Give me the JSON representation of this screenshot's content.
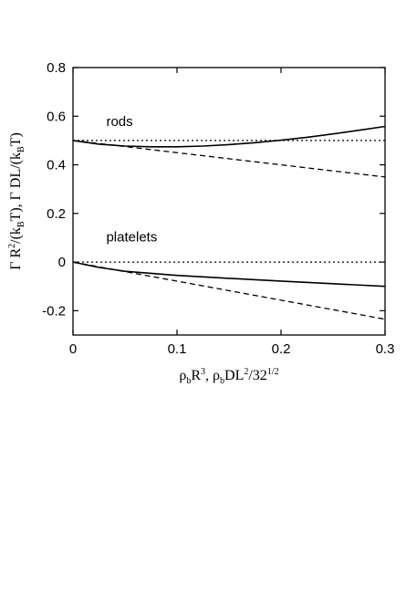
{
  "chart_data": {
    "type": "line",
    "title": "",
    "xlabel": {
      "parts": [
        {
          "t": "ρ",
          "s": "n"
        },
        {
          "t": "b",
          "s": "sub"
        },
        {
          "t": "R",
          "s": "n"
        },
        {
          "t": "3",
          "s": "sup"
        },
        {
          "t": ",  ρ",
          "s": "n"
        },
        {
          "t": "b",
          "s": "sub"
        },
        {
          "t": "DL",
          "s": "n"
        },
        {
          "t": "2",
          "s": "sup"
        },
        {
          "t": "/32",
          "s": "n"
        },
        {
          "t": "1/2",
          "s": "sup"
        }
      ]
    },
    "ylabel": {
      "parts": [
        {
          "t": "Γ R",
          "s": "n"
        },
        {
          "t": "2",
          "s": "sup"
        },
        {
          "t": "/(k",
          "s": "n"
        },
        {
          "t": "B",
          "s": "sub"
        },
        {
          "t": "T),  Γ DL/(k",
          "s": "n"
        },
        {
          "t": "B",
          "s": "sub"
        },
        {
          "t": "T)",
          "s": "n"
        }
      ]
    },
    "xlim": [
      0,
      0.3
    ],
    "ylim": [
      -0.3,
      0.8
    ],
    "xticks": [
      0,
      0.1,
      0.2,
      0.3
    ],
    "xtick_labels": [
      "0",
      "0.1",
      "0.2",
      "0.3"
    ],
    "yticks": [
      -0.2,
      0,
      0.2,
      0.4,
      0.6,
      0.8
    ],
    "ytick_labels": [
      "-0.2",
      "0",
      "0.2",
      "0.4",
      "0.6",
      "0.8"
    ],
    "grid": false,
    "annotations": [
      {
        "text": "rods",
        "x": 0.032,
        "y": 0.56
      },
      {
        "text": "platelets",
        "x": 0.032,
        "y": 0.085
      }
    ],
    "series": [
      {
        "style": "dotted",
        "x": [
          0,
          0.3
        ],
        "y": [
          0.5,
          0.5
        ]
      },
      {
        "style": "solid",
        "x": [
          0,
          0.025,
          0.05,
          0.075,
          0.1,
          0.125,
          0.15,
          0.175,
          0.2,
          0.225,
          0.25,
          0.275,
          0.3
        ],
        "y": [
          0.5,
          0.485,
          0.477,
          0.474,
          0.474,
          0.477,
          0.483,
          0.491,
          0.501,
          0.513,
          0.527,
          0.542,
          0.558
        ]
      },
      {
        "style": "dashed",
        "x": [
          0,
          0.3
        ],
        "y": [
          0.5,
          0.35
        ]
      },
      {
        "style": "dotted",
        "x": [
          0,
          0.3
        ],
        "y": [
          0,
          0
        ]
      },
      {
        "style": "solid",
        "x": [
          0,
          0.025,
          0.05,
          0.1,
          0.15,
          0.2,
          0.25,
          0.3
        ],
        "y": [
          0,
          -0.022,
          -0.038,
          -0.055,
          -0.067,
          -0.078,
          -0.089,
          -0.1
        ]
      },
      {
        "style": "dashed",
        "x": [
          0,
          0.3
        ],
        "y": [
          0,
          -0.235
        ]
      }
    ]
  }
}
